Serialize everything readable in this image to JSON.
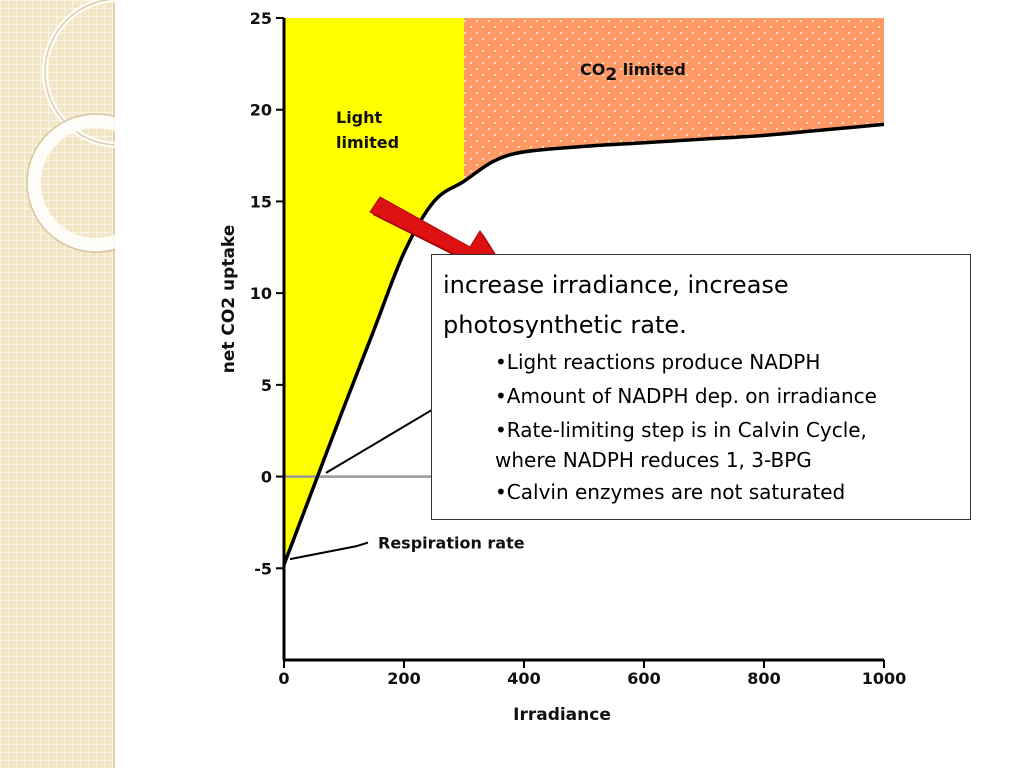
{
  "chart_data": {
    "type": "line",
    "xlabel": "Irradiance",
    "ylabel": "net CO2 uptake",
    "xlim": [
      0,
      1000
    ],
    "ylim": [
      -10,
      25
    ],
    "x_ticks": [
      0,
      200,
      400,
      600,
      800,
      1000
    ],
    "y_ticks": [
      25,
      20,
      15,
      10,
      5,
      0,
      -5
    ],
    "grid": false,
    "series": [
      {
        "name": "",
        "x": [
          0,
          50,
          100,
          150,
          200,
          250,
          300,
          350,
          400,
          500,
          600,
          700,
          800,
          900,
          1000
        ],
        "y": [
          -4.8,
          -0.5,
          3.8,
          8.0,
          12.2,
          15.0,
          16.1,
          17.2,
          17.7,
          18.0,
          18.2,
          18.4,
          18.6,
          18.9,
          19.2
        ],
        "color": "#000000"
      }
    ],
    "regions": [
      {
        "label_lines": [
          "Light",
          "limited"
        ],
        "x_range": [
          0,
          300
        ],
        "color": "#ffff00"
      },
      {
        "label": "CO2 limited",
        "label_main": "CO",
        "label_sub": "2",
        "label_tail": " limited",
        "x_range": [
          300,
          1000
        ],
        "color": "#ff9966"
      }
    ],
    "annotations": [
      {
        "text": "Respiration rate",
        "x": 150,
        "y": -3.6
      }
    ]
  },
  "callout": {
    "title_line1": "increase irradiance, increase",
    "title_line2": "photosynthetic rate.",
    "bullets": [
      "•Light reactions produce NADPH",
      "•Amount  of NADPH dep. on irradiance",
      "•Rate-limiting step is in Calvin Cycle,",
      "where NADPH reduces 1, 3-BPG",
      "•Calvin enzymes are not saturated"
    ]
  },
  "colors": {
    "light_region": "#ffff00",
    "co2_region": "#ff9966",
    "arrow": "#dd1111",
    "curve": "#000000",
    "zero_line": "#999999",
    "side_panel": "#f3e6c6"
  }
}
